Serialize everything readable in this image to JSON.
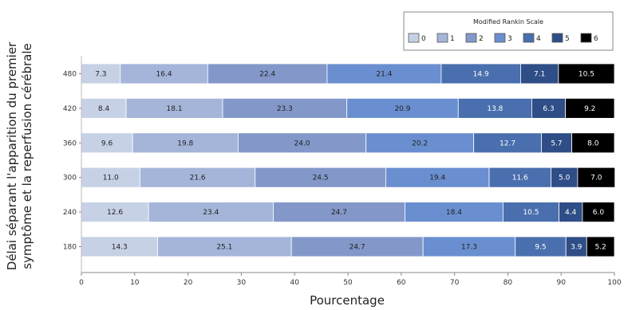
{
  "chart_data": {
    "type": "bar",
    "orientation": "horizontal",
    "stacked": true,
    "categories": [
      "480",
      "420",
      "360",
      "300",
      "240",
      "180"
    ],
    "series": [
      {
        "name": "0",
        "color": "#c7d1e6",
        "values": [
          7.3,
          8.4,
          9.6,
          11.0,
          12.6,
          14.3
        ]
      },
      {
        "name": "1",
        "color": "#a4b5d9",
        "values": [
          16.4,
          18.1,
          19.8,
          21.6,
          23.4,
          25.1
        ]
      },
      {
        "name": "2",
        "color": "#8398c9",
        "values": [
          22.4,
          23.3,
          24.0,
          24.5,
          24.7,
          24.7
        ]
      },
      {
        "name": "3",
        "color": "#6a8fd0",
        "values": [
          21.4,
          20.9,
          20.2,
          19.4,
          18.4,
          17.3
        ]
      },
      {
        "name": "4",
        "color": "#4a6fae",
        "values": [
          14.9,
          13.8,
          12.7,
          11.6,
          10.5,
          9.5
        ]
      },
      {
        "name": "5",
        "color": "#2f4d86",
        "values": [
          7.1,
          6.3,
          5.7,
          5.0,
          4.4,
          3.9
        ]
      },
      {
        "name": "6",
        "color": "#000000",
        "values": [
          10.5,
          9.2,
          8.0,
          7.0,
          6.0,
          5.2
        ]
      }
    ],
    "data_labels": [
      [
        "7.3",
        "16.4",
        "22.4",
        "21.4",
        "14.9",
        "7.1",
        "10.5"
      ],
      [
        "8.4",
        "18.1",
        "23.3",
        "20.9",
        "13.8",
        "6.3",
        "9.2"
      ],
      [
        "9.6",
        "19.8",
        "24.0",
        "20.2",
        "12.7",
        "5.7",
        "8.0"
      ],
      [
        "11.0",
        "21.6",
        "24.5",
        "19.4",
        "11.6",
        "5.0",
        "7.0"
      ],
      [
        "12.6",
        "23.4",
        "24.7",
        "18.4",
        "10.5",
        "4.4",
        "6.0"
      ],
      [
        "14.3",
        "25.1",
        "24.7",
        "17.3",
        "9.5",
        "3.9",
        "5.2"
      ]
    ],
    "xlabel": "Pourcentage",
    "ylabel_lines": [
      "Délai séparant l'apparition du premier",
      "symptôme et la reperfusion cérébrale"
    ],
    "xlim": [
      0,
      100
    ],
    "xticks": [
      0,
      10,
      20,
      30,
      40,
      50,
      60,
      70,
      80,
      90,
      100
    ],
    "legend": {
      "title": "Modified Rankin Scale",
      "position": "top-right"
    },
    "grid": false
  }
}
